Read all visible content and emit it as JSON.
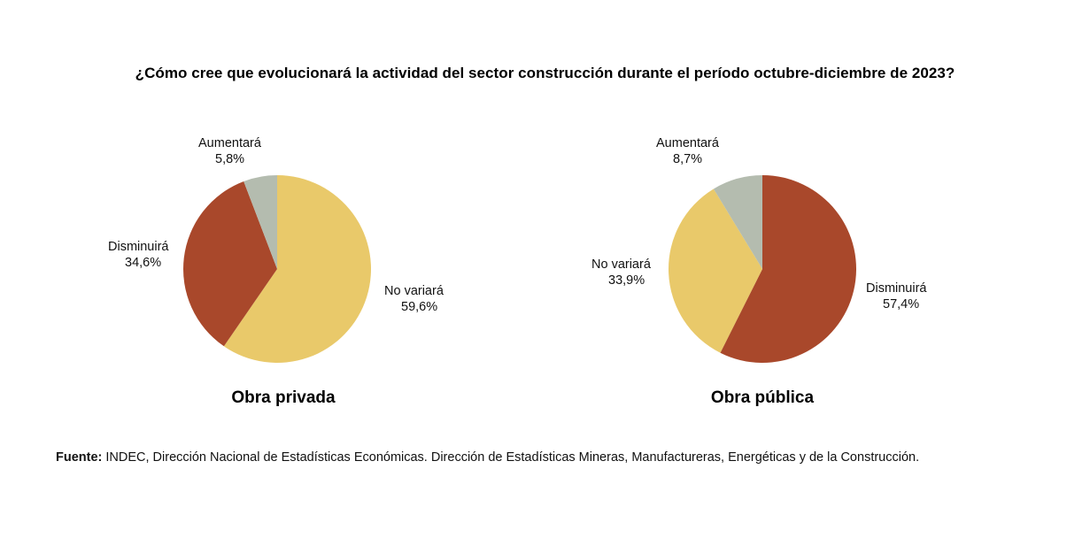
{
  "title": "¿Cómo cree que evolucionará la actividad del sector construcción durante el período octubre-diciembre de 2023?",
  "source": {
    "label": "Fuente:",
    "text": " INDEC, Dirección Nacional de Estadísticas Económicas. Dirección de Estadísticas Mineras, Manufactureras, Energéticas y de la Construcción."
  },
  "colors": {
    "aumentara": "#b4bcaf",
    "no_variara": "#e9c96a",
    "disminuira": "#a9482b"
  },
  "chart_data": [
    {
      "type": "pie",
      "title": "Obra privada",
      "slices": [
        {
          "label": "No variará",
          "value": 59.6,
          "value_label": "59,6%",
          "color": "#e9c96a"
        },
        {
          "label": "Disminuirá",
          "value": 34.6,
          "value_label": "34,6%",
          "color": "#a9482b"
        },
        {
          "label": "Aumentará",
          "value": 5.8,
          "value_label": "5,8%",
          "color": "#b4bcaf"
        }
      ]
    },
    {
      "type": "pie",
      "title": "Obra pública",
      "slices": [
        {
          "label": "Disminuirá",
          "value": 57.4,
          "value_label": "57,4%",
          "color": "#a9482b"
        },
        {
          "label": "No variará",
          "value": 33.9,
          "value_label": "33,9%",
          "color": "#e9c96a"
        },
        {
          "label": "Aumentará",
          "value": 8.7,
          "value_label": "8,7%",
          "color": "#b4bcaf"
        }
      ]
    }
  ]
}
